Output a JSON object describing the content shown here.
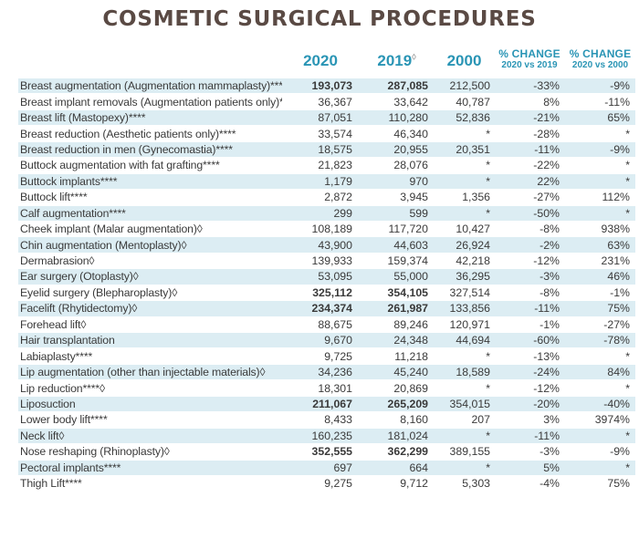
{
  "title": "COSMETIC SURGICAL PROCEDURES",
  "headers": {
    "y2020": "2020",
    "y2019": "2019",
    "y2019_mark": "◊",
    "y2000": "2000",
    "pct1_label": "% CHANGE",
    "pct1_sub": "2020 vs 2019",
    "pct2_label": "% CHANGE",
    "pct2_sub": "2020 vs 2000"
  },
  "rows": [
    {
      "name": "Breast augmentation (Augmentation mammaplasty)****†",
      "v2020": "193,073",
      "v2019": "287,085",
      "v2000": "212,500",
      "c1": "-33%",
      "c2": "-9%",
      "bold": true
    },
    {
      "name": "Breast implant removals (Augmentation patients only)****",
      "v2020": "36,367",
      "v2019": "33,642",
      "v2000": "40,787",
      "c1": "8%",
      "c2": "-11%",
      "bold": false
    },
    {
      "name": "Breast lift (Mastopexy)****",
      "v2020": "87,051",
      "v2019": "110,280",
      "v2000": "52,836",
      "c1": "-21%",
      "c2": "65%",
      "bold": false
    },
    {
      "name": "Breast reduction (Aesthetic patients only)****",
      "v2020": "33,574",
      "v2019": "46,340",
      "v2000": "*",
      "c1": "-28%",
      "c2": "*",
      "bold": false
    },
    {
      "name": "Breast reduction in men (Gynecomastia)****",
      "v2020": "18,575",
      "v2019": "20,955",
      "v2000": "20,351",
      "c1": "-11%",
      "c2": "-9%",
      "bold": false
    },
    {
      "name": "Buttock augmentation with fat grafting****",
      "v2020": "21,823",
      "v2019": "28,076",
      "v2000": "*",
      "c1": "-22%",
      "c2": "*",
      "bold": false
    },
    {
      "name": "Buttock implants****",
      "v2020": "1,179",
      "v2019": "970",
      "v2000": "*",
      "c1": "22%",
      "c2": "*",
      "bold": false
    },
    {
      "name": "Buttock lift****",
      "v2020": "2,872",
      "v2019": "3,945",
      "v2000": "1,356",
      "c1": "-27%",
      "c2": "112%",
      "bold": false
    },
    {
      "name": "Calf augmentation****",
      "v2020": "299",
      "v2019": "599",
      "v2000": "*",
      "c1": "-50%",
      "c2": "*",
      "bold": false
    },
    {
      "name": "Cheek implant (Malar augmentation)◊",
      "v2020": "108,189",
      "v2019": "117,720",
      "v2000": "10,427",
      "c1": "-8%",
      "c2": "938%",
      "bold": false
    },
    {
      "name": "Chin augmentation (Mentoplasty)◊",
      "v2020": "43,900",
      "v2019": "44,603",
      "v2000": "26,924",
      "c1": "-2%",
      "c2": "63%",
      "bold": false
    },
    {
      "name": "Dermabrasion◊",
      "v2020": "139,933",
      "v2019": "159,374",
      "v2000": "42,218",
      "c1": "-12%",
      "c2": "231%",
      "bold": false
    },
    {
      "name": "Ear surgery (Otoplasty)◊",
      "v2020": "53,095",
      "v2019": "55,000",
      "v2000": "36,295",
      "c1": "-3%",
      "c2": "46%",
      "bold": false
    },
    {
      "name": "Eyelid surgery (Blepharoplasty)◊",
      "v2020": "325,112",
      "v2019": "354,105",
      "v2000": "327,514",
      "c1": "-8%",
      "c2": "-1%",
      "bold": true
    },
    {
      "name": "Facelift (Rhytidectomy)◊",
      "v2020": "234,374",
      "v2019": "261,987",
      "v2000": "133,856",
      "c1": "-11%",
      "c2": "75%",
      "bold": true
    },
    {
      "name": "Forehead lift◊",
      "v2020": "88,675",
      "v2019": "89,246",
      "v2000": "120,971",
      "c1": "-1%",
      "c2": "-27%",
      "bold": false
    },
    {
      "name": "Hair transplantation",
      "v2020": "9,670",
      "v2019": "24,348",
      "v2000": "44,694",
      "c1": "-60%",
      "c2": "-78%",
      "bold": false
    },
    {
      "name": "Labiaplasty****",
      "v2020": "9,725",
      "v2019": "11,218",
      "v2000": "*",
      "c1": "-13%",
      "c2": "*",
      "bold": false
    },
    {
      "name": "Lip augmentation (other than injectable materials)◊",
      "v2020": "34,236",
      "v2019": "45,240",
      "v2000": "18,589",
      "c1": "-24%",
      "c2": "84%",
      "bold": false
    },
    {
      "name": "Lip reduction****◊",
      "v2020": "18,301",
      "v2019": "20,869",
      "v2000": "*",
      "c1": "-12%",
      "c2": "*",
      "bold": false
    },
    {
      "name": "Liposuction",
      "v2020": "211,067",
      "v2019": "265,209",
      "v2000": "354,015",
      "c1": "-20%",
      "c2": "-40%",
      "bold": true
    },
    {
      "name": "Lower body lift****",
      "v2020": "8,433",
      "v2019": "8,160",
      "v2000": "207",
      "c1": "3%",
      "c2": "3974%",
      "bold": false
    },
    {
      "name": "Neck lift◊",
      "v2020": "160,235",
      "v2019": "181,024",
      "v2000": "*",
      "c1": "-11%",
      "c2": "*",
      "bold": false
    },
    {
      "name": "Nose reshaping (Rhinoplasty)◊",
      "v2020": "352,555",
      "v2019": "362,299",
      "v2000": "389,155",
      "c1": "-3%",
      "c2": "-9%",
      "bold": true
    },
    {
      "name": "Pectoral implants****",
      "v2020": "697",
      "v2019": "664",
      "v2000": "*",
      "c1": "5%",
      "c2": "*",
      "bold": false
    },
    {
      "name": "Thigh Lift****",
      "v2020": "9,275",
      "v2019": "9,712",
      "v2000": "5,303",
      "c1": "-4%",
      "c2": "75%",
      "bold": false
    }
  ]
}
